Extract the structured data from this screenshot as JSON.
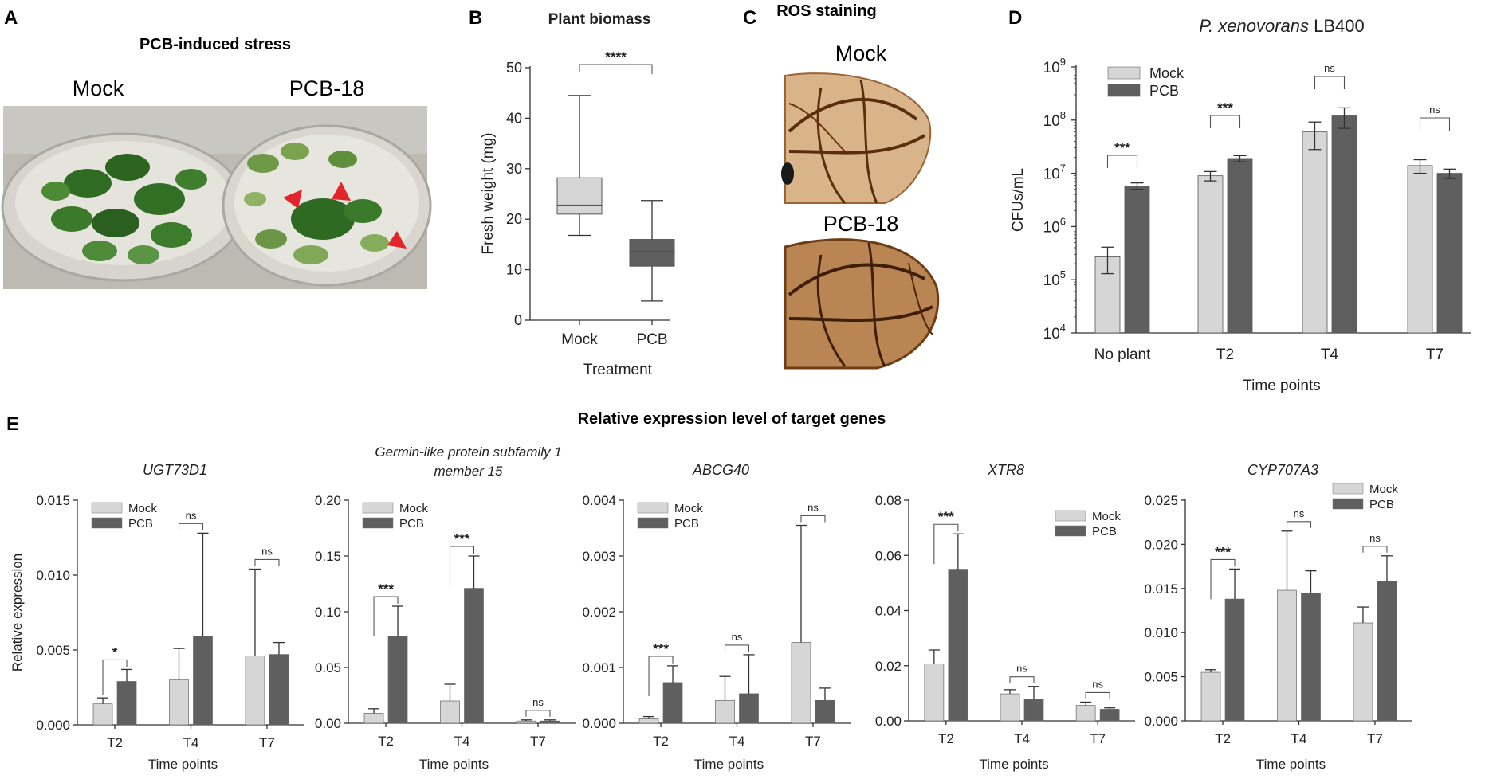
{
  "panel_letters": {
    "A": "A",
    "B": "B",
    "C": "C",
    "D": "D",
    "E": "E"
  },
  "colors": {
    "mock": "#d6d6d6",
    "pcb": "#5f5f5f",
    "axis": "#222222",
    "arrow": "#e3242b"
  },
  "panelA": {
    "title": "PCB-induced stress",
    "label_left": "Mock",
    "label_right": "PCB-18"
  },
  "panelC": {
    "title": "ROS staining",
    "label_top": "Mock",
    "label_bottom": "PCB-18"
  },
  "panelE": {
    "heading": "Relative expression level of target genes"
  },
  "chart_data": [
    {
      "id": "B",
      "type": "box",
      "title": "Plant biomass",
      "categories": [
        "Mock",
        "PCB"
      ],
      "boxes": [
        {
          "min": 16.8,
          "q1": 21.0,
          "median": 22.8,
          "q3": 28.2,
          "max": 44.5
        },
        {
          "min": 3.8,
          "q1": 10.7,
          "median": 13.5,
          "q3": 16.0,
          "max": 23.7
        }
      ],
      "xlabel": "Treatment",
      "ylabel": "Fresh weight (mg)",
      "ylim": [
        0,
        50
      ],
      "yticks": [
        "0",
        "10",
        "20",
        "30",
        "40",
        "50"
      ],
      "significance": [
        "****"
      ]
    },
    {
      "id": "D",
      "type": "bar",
      "yscale": "log",
      "title": "P. xenovorans LB400",
      "title_italic": "P. xenovorans",
      "title_rest": "LB400",
      "categories": [
        "No plant",
        "T2",
        "T4",
        "T7"
      ],
      "series": [
        {
          "name": "Mock",
          "values": [
            270000.0,
            9000000.0,
            60000000.0,
            14000000.0
          ],
          "errors": [
            140000.0,
            1800000.0,
            32000000.0,
            4000000.0
          ]
        },
        {
          "name": "PCB",
          "values": [
            5800000.0,
            19000000.0,
            120000000.0,
            10000000.0
          ],
          "errors": [
            800000.0,
            2500000.0,
            50000000.0,
            2000000.0
          ]
        }
      ],
      "xlabel": "Time points",
      "ylabel": "CFUs/mL",
      "ylim_exp": [
        4,
        9
      ],
      "significance": [
        "***",
        "***",
        "ns",
        "ns"
      ]
    },
    {
      "id": "E1",
      "type": "bar",
      "title": "UGT73D1",
      "categories": [
        "T2",
        "T4",
        "T7"
      ],
      "series": [
        {
          "name": "Mock",
          "values": [
            0.0014,
            0.003,
            0.0046
          ],
          "errors": [
            0.0004,
            0.0021,
            0.0058
          ]
        },
        {
          "name": "PCB",
          "values": [
            0.0029,
            0.0059,
            0.0047
          ],
          "errors": [
            0.0008,
            0.0069,
            0.0008
          ]
        }
      ],
      "xlabel": "Time points",
      "ylabel": "Relative expression",
      "ylim": [
        0,
        0.015
      ],
      "yticks": [
        "0.000",
        "0.005",
        "0.010",
        "0.015"
      ],
      "significance": [
        "*",
        "ns",
        "ns"
      ],
      "legend": "top-left"
    },
    {
      "id": "E2",
      "type": "bar",
      "title": "Germin-like protein subfamily 1 member 15",
      "title_lines": [
        "Germin-like protein subfamily 1",
        "member 15"
      ],
      "categories": [
        "T2",
        "T4",
        "T7"
      ],
      "series": [
        {
          "name": "Mock",
          "values": [
            0.009,
            0.02,
            0.002
          ],
          "errors": [
            0.004,
            0.015,
            0.001
          ]
        },
        {
          "name": "PCB",
          "values": [
            0.078,
            0.121,
            0.002
          ],
          "errors": [
            0.027,
            0.029,
            0.001
          ]
        }
      ],
      "xlabel": "Time points",
      "ylabel": "",
      "ylim": [
        0,
        0.2
      ],
      "yticks": [
        "0.00",
        "0.05",
        "0.10",
        "0.15",
        "0.20"
      ],
      "significance": [
        "***",
        "***",
        "ns"
      ],
      "legend": "top-left"
    },
    {
      "id": "E3",
      "type": "bar",
      "title": "ABCG40",
      "categories": [
        "T2",
        "T4",
        "T7"
      ],
      "series": [
        {
          "name": "Mock",
          "values": [
            8e-05,
            0.00041,
            0.00145
          ],
          "errors": [
            4e-05,
            0.00043,
            0.0021
          ]
        },
        {
          "name": "PCB",
          "values": [
            0.00073,
            0.00053,
            0.00041
          ],
          "errors": [
            0.0003,
            0.0007,
            0.00022
          ]
        }
      ],
      "xlabel": "Time points",
      "ylabel": "",
      "ylim": [
        0,
        0.004
      ],
      "yticks": [
        "0.000",
        "0.001",
        "0.002",
        "0.003",
        "0.004"
      ],
      "significance": [
        "***",
        "ns",
        "ns"
      ],
      "legend": "top-left"
    },
    {
      "id": "E4",
      "type": "bar",
      "title": "XTR8",
      "categories": [
        "T2",
        "T4",
        "T7"
      ],
      "series": [
        {
          "name": "Mock",
          "values": [
            0.0207,
            0.0098,
            0.0056
          ],
          "errors": [
            0.005,
            0.0015,
            0.0012
          ]
        },
        {
          "name": "PCB",
          "values": [
            0.055,
            0.0078,
            0.0042
          ],
          "errors": [
            0.0128,
            0.0047,
            0.0005
          ]
        }
      ],
      "xlabel": "Time points",
      "ylabel": "",
      "ylim": [
        0,
        0.08
      ],
      "yticks": [
        "0.00",
        "0.02",
        "0.04",
        "0.06",
        "0.08"
      ],
      "significance": [
        "***",
        "ns",
        "ns"
      ],
      "legend": "top-right"
    },
    {
      "id": "E5",
      "type": "bar",
      "title": "CYP707A3",
      "categories": [
        "T2",
        "T4",
        "T7"
      ],
      "series": [
        {
          "name": "Mock",
          "values": [
            0.0055,
            0.0148,
            0.0111
          ],
          "errors": [
            0.0003,
            0.0067,
            0.0018
          ]
        },
        {
          "name": "PCB",
          "values": [
            0.0138,
            0.0145,
            0.0158
          ],
          "errors": [
            0.0034,
            0.0025,
            0.0029
          ]
        }
      ],
      "xlabel": "Time points",
      "ylabel": "",
      "ylim": [
        0,
        0.025
      ],
      "yticks": [
        "0.000",
        "0.005",
        "0.010",
        "0.015",
        "0.020",
        "0.025"
      ],
      "significance": [
        "***",
        "ns",
        "ns"
      ],
      "legend": "top-right"
    }
  ]
}
